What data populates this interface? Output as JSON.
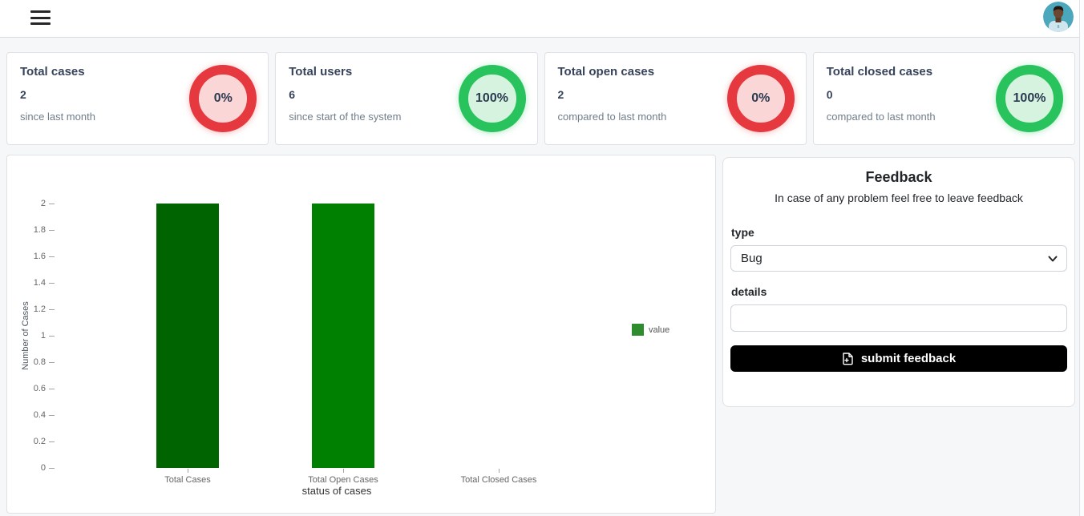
{
  "stats": [
    {
      "title": "Total cases",
      "value": "2",
      "subtitle": "since last month",
      "badge": "0%",
      "status": "danger"
    },
    {
      "title": "Total users",
      "value": "6",
      "subtitle": "since start of the system",
      "badge": "100%",
      "status": "success"
    },
    {
      "title": "Total open cases",
      "value": "2",
      "subtitle": "compared to last month",
      "badge": "0%",
      "status": "danger"
    },
    {
      "title": "Total closed cases",
      "value": "0",
      "subtitle": "compared to last month",
      "badge": "100%",
      "status": "success"
    }
  ],
  "chart_data": {
    "type": "bar",
    "categories": [
      "Total Cases",
      "Total Open Cases",
      "Total Closed Cases"
    ],
    "values": [
      2,
      2,
      0
    ],
    "bar_colors": [
      "#006400",
      "#008000",
      "#008000"
    ],
    "title": "",
    "xlabel": "status of cases",
    "ylabel": "Number of Cases",
    "ylim": [
      0,
      2
    ],
    "yticks": [
      "0",
      "0.2",
      "0.4",
      "0.6",
      "0.8",
      "1",
      "1.2",
      "1.4",
      "1.6",
      "1.8",
      "2"
    ],
    "grid": false,
    "legend": {
      "label": "value",
      "color": "#2e8b2e",
      "position": "right"
    }
  },
  "feedback": {
    "title": "Feedback",
    "subtitle": "In case of any problem feel free to leave feedback",
    "type_label": "type",
    "type_value": "Bug",
    "details_label": "details",
    "details_value": "",
    "details_placeholder": "",
    "submit_label": "submit feedback"
  },
  "colors": {
    "danger_border": "#e5383f",
    "danger_bg": "#fad6d7",
    "success_border": "#28c35c",
    "success_bg": "#d5f3df",
    "button_bg": "#000000"
  }
}
